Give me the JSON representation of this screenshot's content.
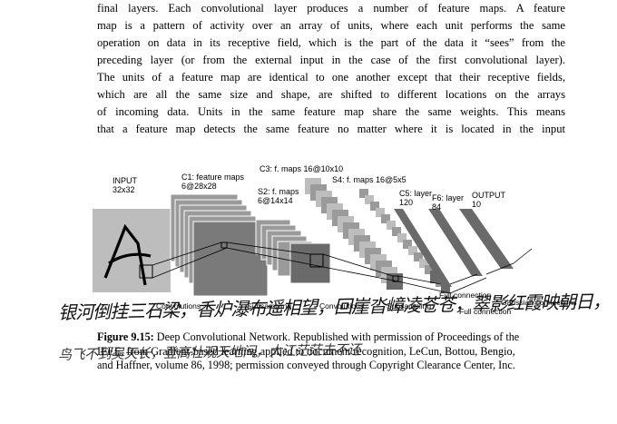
{
  "paragraph": [
    "final layers.  Each convolutional layer produces a number of feature maps.  A feature",
    "map is a pattern of activity over an array of units, where each unit performs the same",
    "operation on data in its receptive field, which is the part of the data it “sees” from the",
    "preceding layer (or from the external input in the case of the first convolutional layer).",
    "The units of a feature map are identical to one another except that their receptive fields,",
    "which are all the same size and shape, are shifted to different locations on the arrays",
    "of incoming data.  Units in the same feature map share the same weights.  This means",
    "that a feature map detects the same feature no matter where it is located in the input"
  ],
  "diagram": {
    "input_label": [
      "INPUT",
      "32x32"
    ],
    "c1_label": [
      "C1: feature maps",
      "6@28x28"
    ],
    "s2_label": [
      "S2: f. maps",
      "6@14x14"
    ],
    "c3_label": "C3: f. maps 16@10x10",
    "s4_label": "S4: f. maps 16@5x5",
    "c5_label": [
      "C5: layer",
      "120"
    ],
    "f6_label": [
      "F6: layer",
      "84"
    ],
    "output_label": [
      "OUTPUT",
      "10"
    ],
    "bottom_labels": [
      "Convolutions",
      "Subsampling",
      "Convolutions",
      "Subsampling",
      "Full connection",
      "Full connection",
      "Gaussian connections"
    ]
  },
  "caption": {
    "label": "Figure 9.15:",
    "lines": [
      " Deep Convolutional Network. Republished with permission of Proceedings of the",
      "IEEE, from Gradient-based learning applied to document recognition, LeCun, Bottou, Bengio,",
      "and Haffner, volume 86, 1998; permission conveyed through Copyright Clearance Center, Inc."
    ]
  },
  "handwriting": {
    "line1": "银河倒挂三石梁，香炉瀑布遥相望，回崖沓嶂凌苍苍，翠影红霞映朝日，",
    "line2": "鸟飞不到吴天长，登高壮观天地间，大江茫茫去不还"
  },
  "colors": {
    "light_gray": "#bdbdbd",
    "mid_gray": "#9a9a9a",
    "dark_gray": "#7a7a7a",
    "darker_gray": "#6a6a6a",
    "stroke": "#000000"
  }
}
